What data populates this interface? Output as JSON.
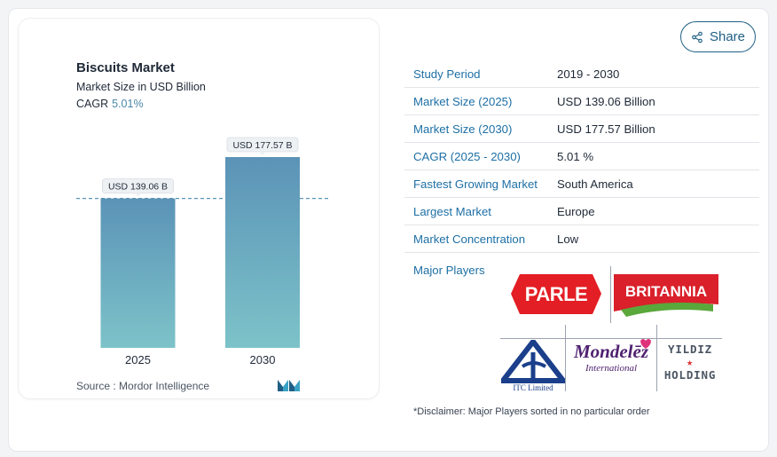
{
  "chart": {
    "title": "Biscuits Market",
    "subtitle": "Market Size in USD Billion",
    "cagr_label": "CAGR",
    "cagr_value": "5.01%",
    "source": "Source :  Mordor Intelligence"
  },
  "chart_data": {
    "type": "bar",
    "categories": [
      "2025",
      "2030"
    ],
    "values": [
      139.06,
      177.57
    ],
    "data_labels": [
      "USD 139.06 B",
      "USD 177.57 B"
    ],
    "title": "Biscuits Market",
    "subtitle": "Market Size in USD Billion",
    "xlabel": "",
    "ylabel": "",
    "ylim": [
      0,
      177.57
    ],
    "grid": false,
    "reference_line_at": 139.06,
    "colors": {
      "bar_top": "#5b93b7",
      "bar_bottom": "#7dc3c9",
      "reference_line": "#5b93b7"
    }
  },
  "share": {
    "label": "Share",
    "icon": "share-icon"
  },
  "table": {
    "rows": [
      {
        "label": "Study Period",
        "value": "2019 - 2030"
      },
      {
        "label": "Market Size (2025)",
        "value": "USD 139.06 Billion"
      },
      {
        "label": "Market Size (2030)",
        "value": "USD 177.57 Billion"
      },
      {
        "label": "CAGR (2025 - 2030)",
        "value": "5.01 %"
      },
      {
        "label": "Fastest Growing Market",
        "value": "South America"
      },
      {
        "label": "Largest Market",
        "value": "Europe"
      },
      {
        "label": "Market Concentration",
        "value": "Low"
      }
    ]
  },
  "major_players": {
    "label": "Major Players",
    "logos": [
      "PARLE",
      "BRITANNIA",
      "ITC Limited",
      "Mondelēz International",
      "YILDIZ HOLDING"
    ],
    "disclaimer": "*Disclaimer: Major Players sorted in no particular order"
  },
  "colors": {
    "accent": "#1d6fa5",
    "share_border": "#1f5f85",
    "parle_red": "#e31e24",
    "britannia_red": "#d9202b",
    "mondelez_purple": "#4f2170",
    "itc_blue": "#1b3f8b"
  }
}
